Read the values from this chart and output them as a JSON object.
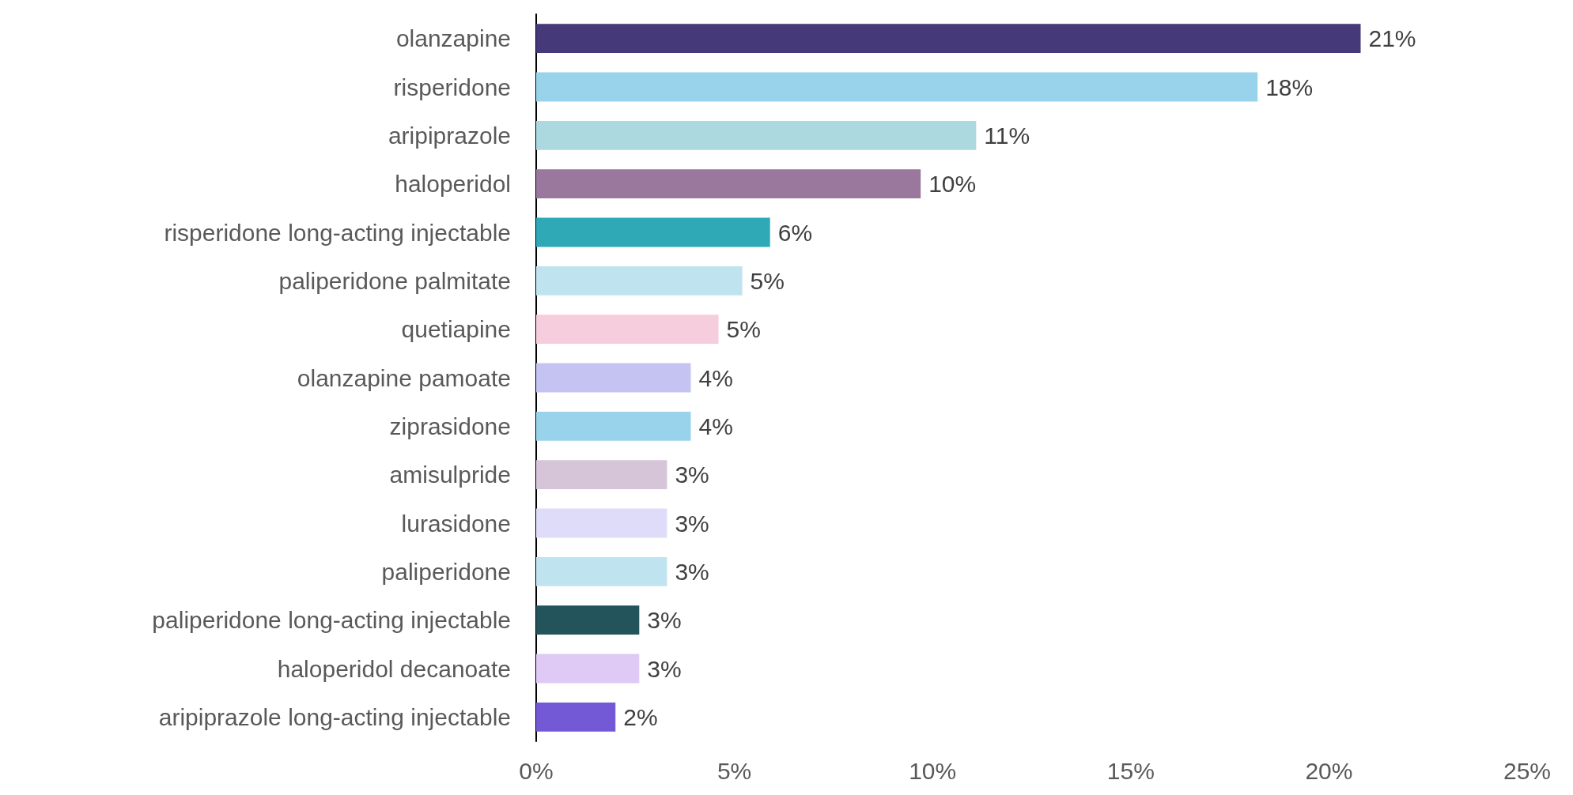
{
  "chart_data": {
    "type": "bar",
    "orientation": "horizontal",
    "categories": [
      "olanzapine",
      "risperidone",
      "aripiprazole",
      "haloperidol",
      "risperidone long-acting injectable",
      "paliperidone palmitate",
      "quetiapine",
      "olanzapine pamoate",
      "ziprasidone",
      "amisulpride",
      "lurasidone",
      "paliperidone",
      "paliperidone long-acting injectable",
      "haloperidol decanoate",
      "aripiprazole long-acting injectable"
    ],
    "values": [
      20.8,
      18.2,
      11.1,
      9.7,
      5.9,
      5.2,
      4.6,
      3.9,
      3.9,
      3.3,
      3.3,
      3.3,
      2.6,
      2.6,
      2.0
    ],
    "value_labels": [
      "21%",
      "18%",
      "11%",
      "10%",
      "6%",
      "5%",
      "5%",
      "4%",
      "4%",
      "3%",
      "3%",
      "3%",
      "3%",
      "3%",
      "2%"
    ],
    "colors": [
      "#46397a",
      "#99d3eb",
      "#acd8df",
      "#9a789e",
      "#2ea9b5",
      "#c0e4ef",
      "#f6cddc",
      "#c4c3f2",
      "#99d3eb",
      "#d6c4d9",
      "#dedcf8",
      "#c0e4ef",
      "#24545b",
      "#dfcaf5",
      "#7459d6"
    ],
    "xlim": [
      0,
      25
    ],
    "xticks": [
      {
        "value": 0,
        "label": "0%"
      },
      {
        "value": 5,
        "label": "5%"
      },
      {
        "value": 10,
        "label": "10%"
      },
      {
        "value": 15,
        "label": "15%"
      },
      {
        "value": 20,
        "label": "20%"
      },
      {
        "value": 25,
        "label": "25%"
      }
    ],
    "grid": false
  }
}
